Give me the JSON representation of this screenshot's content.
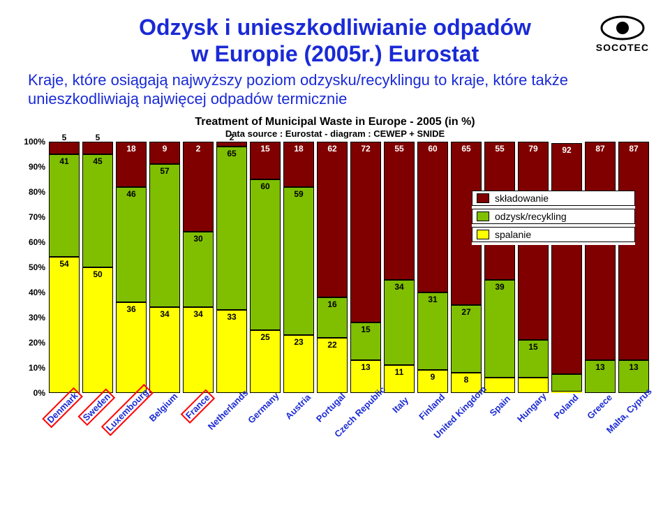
{
  "logo_text": "SOCOTEC",
  "title_lines": [
    "Odzysk i unieszkodliwianie odpadów",
    "w Europie (2005r.) Eurostat"
  ],
  "subtitle": "Kraje, które osiągają najwyższy poziom odzysku/recyklingu to kraje, które także unieszkodliwiają najwięcej odpadów termicznie",
  "chart": {
    "type": "stacked-bar",
    "title": "Treatment of Municipal Waste in Europe - 2005 (in %)",
    "subtitle": "Data source : Eurostat   -   diagram : CEWEP + SNIDE",
    "y_ticks": [
      "0%",
      "10%",
      "20%",
      "30%",
      "40%",
      "50%",
      "60%",
      "70%",
      "80%",
      "90%",
      "100%"
    ],
    "ylim": [
      0,
      100
    ],
    "colors": {
      "landfill": "#800000",
      "recycling": "#7fbf00",
      "incineration": "#ffff00",
      "text": "#000000",
      "title_color": "#1a2ad6"
    },
    "legend": [
      {
        "key": "landfill",
        "label": "składowanie"
      },
      {
        "key": "recycling",
        "label": "odzysk/recykling"
      },
      {
        "key": "incineration",
        "label": "spalanie"
      }
    ],
    "highlight": [
      "Denmark",
      "Sweden",
      "Luxembourg",
      "France"
    ],
    "countries": [
      {
        "name": "Denmark",
        "landfill": 5,
        "recycling": 41,
        "incineration": 54
      },
      {
        "name": "Sweden",
        "landfill": 5,
        "recycling": 45,
        "incineration": 50
      },
      {
        "name": "Luxembourg",
        "landfill": 18,
        "recycling": 46,
        "incineration": 36
      },
      {
        "name": "Belgium",
        "landfill": 9,
        "recycling": 57,
        "incineration": 34
      },
      {
        "name": "France",
        "landfill": 36,
        "recycling": 30,
        "incineration": 34,
        "landfill_top": 2
      },
      {
        "name": "Netherlands",
        "landfill": 2,
        "recycling": 65,
        "incineration": 33
      },
      {
        "name": "Germany",
        "landfill": 15,
        "recycling": 60,
        "incineration": 25
      },
      {
        "name": "Austria",
        "landfill": 18,
        "recycling": 59,
        "incineration": 23
      },
      {
        "name": "Portugal",
        "landfill": 62,
        "recycling": 16,
        "incineration": 22
      },
      {
        "name": "Czech Republic",
        "landfill": 72,
        "recycling": 15,
        "incineration": 13
      },
      {
        "name": "Italy",
        "landfill": 55,
        "recycling": 34,
        "incineration": 11
      },
      {
        "name": "Finland",
        "landfill": 60,
        "recycling": 31,
        "incineration": 9
      },
      {
        "name": "United Kingdom",
        "landfill": 65,
        "recycling": 27,
        "incineration": 8
      },
      {
        "name": "Spain",
        "landfill": 55,
        "recycling": 39,
        "incineration": 6
      },
      {
        "name": "Hungary",
        "landfill": 79,
        "recycling": 15,
        "incineration": 6
      },
      {
        "name": "Poland",
        "landfill": 92,
        "recycling": 7,
        "incineration": 0.4,
        "inc_label": "0,4"
      },
      {
        "name": "Greece",
        "landfill": 87,
        "recycling": 13,
        "incineration": 0
      },
      {
        "name": "Malta, Cyprus",
        "landfill": 87,
        "recycling": 13,
        "incineration": 0
      }
    ]
  }
}
